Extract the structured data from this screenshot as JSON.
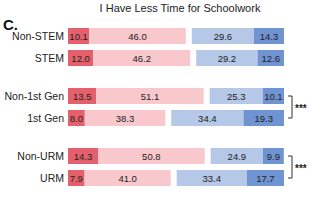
{
  "chart_data": {
    "type": "bar",
    "panel_label": "C.",
    "title": "I Have Less Time for Schoolwork",
    "orientation": "horizontal",
    "stacked": true,
    "data_labels": true,
    "tick_labels": "y",
    "xlim": [
      0,
      100
    ],
    "categories": [
      "Non-STEM",
      "STEM",
      "Non-1st Gen",
      "1st Gen",
      "Non-URM",
      "URM"
    ],
    "series": [
      {
        "color": "#e4606c",
        "values": [
          10.1,
          12.0,
          13.5,
          8.0,
          14.3,
          7.9
        ],
        "value_labels": [
          "10.1",
          "12.0",
          "13.5",
          "8.0",
          "14.3",
          "7.9"
        ]
      },
      {
        "color": "#f8c8cd",
        "values": [
          46.0,
          46.2,
          51.1,
          38.3,
          50.8,
          41.0
        ],
        "value_labels": [
          "46.0",
          "46.2",
          "51.1",
          "38.3",
          "50.8",
          "41.0"
        ]
      },
      {
        "color": "#b5c8e8",
        "values": [
          29.6,
          29.2,
          25.3,
          34.4,
          24.9,
          33.4
        ],
        "value_labels": [
          "29.6",
          "29.2",
          "25.3",
          "34.4",
          "24.9",
          "33.4"
        ]
      },
      {
        "color": "#7093d2",
        "values": [
          14.3,
          12.6,
          10.1,
          19.3,
          9.9,
          17.7
        ],
        "value_labels": [
          "14.3",
          "12.6",
          "10.1",
          "19.3",
          "9.9",
          "17.7"
        ]
      }
    ],
    "significance": [
      {
        "categories": [
          "Non-1st Gen",
          "1st Gen"
        ],
        "label": "***"
      },
      {
        "categories": [
          "Non-URM",
          "URM"
        ],
        "label": "***"
      }
    ]
  }
}
